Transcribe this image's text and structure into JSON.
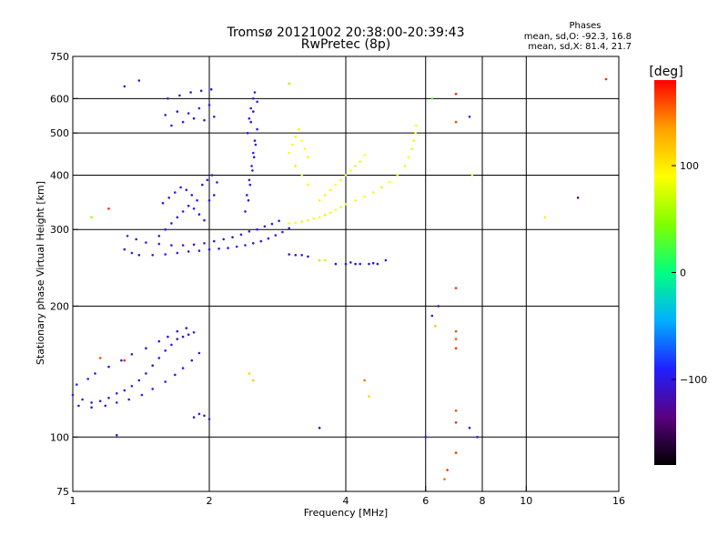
{
  "chart_data": {
    "type": "scatter",
    "title": "Tromsø 20121002 20:38:00-20:39:43",
    "subtitle": "RwPretec (8p)",
    "xlabel": "Frequency [MHz]",
    "ylabel": "Stationary phase Virtual Height [km]",
    "x_scale": "log",
    "y_scale": "log",
    "xlim": [
      1,
      16
    ],
    "ylim": [
      75,
      750
    ],
    "x_ticks": [
      1,
      2,
      4,
      6,
      8,
      10,
      16
    ],
    "x_tick_labels": [
      "1",
      "2",
      "4",
      "6",
      "8",
      "10",
      "16"
    ],
    "y_ticks": [
      75,
      100,
      200,
      300,
      400,
      500,
      600,
      750
    ],
    "y_tick_labels": [
      "75",
      "100",
      "200",
      "300",
      "400",
      "500",
      "600",
      "750"
    ],
    "x_grid": [
      2,
      4,
      6,
      8,
      10
    ],
    "y_grid": [
      100,
      200,
      300,
      400,
      500,
      600
    ],
    "grid": true,
    "colorbar": {
      "label": "[deg]",
      "range": [
        -180,
        180
      ],
      "ticks": [
        100,
        0,
        -100
      ],
      "tick_labels": [
        "100",
        "0",
        "−100"
      ],
      "colors": [
        "#000000",
        "#5a0080",
        "#2020ff",
        "#00b0ff",
        "#00ff80",
        "#80ff00",
        "#ffff00",
        "#ffa000",
        "#ff0000"
      ]
    },
    "stats": {
      "heading": "Phases",
      "line1": "mean, sd,O: -92.3, 16.8",
      "line2": "mean, sd,X: 81.4, 21.7"
    },
    "series": [
      {
        "x": [
          1.0,
          1.05,
          1.1,
          1.15,
          1.2,
          1.25,
          1.3,
          1.35,
          1.4,
          1.45,
          1.5,
          1.55,
          1.6,
          1.65,
          1.7,
          1.75,
          1.8,
          1.85,
          1.02,
          1.08,
          1.12,
          1.2,
          1.28,
          1.35,
          1.45,
          1.55,
          1.62,
          1.7,
          1.78,
          1.03,
          1.1,
          1.18,
          1.25,
          1.33,
          1.42,
          1.5,
          1.6,
          1.68,
          1.75,
          1.83,
          1.9
        ],
        "y": [
          125,
          122,
          120,
          121,
          123,
          126,
          128,
          131,
          135,
          140,
          146,
          152,
          158,
          163,
          168,
          170,
          172,
          174,
          132,
          136,
          140,
          145,
          150,
          155,
          160,
          166,
          170,
          175,
          178,
          118,
          117,
          118,
          120,
          122,
          125,
          129,
          134,
          139,
          144,
          150,
          156
        ],
        "phase": [
          -100,
          -95,
          -105,
          -90,
          -110,
          -100,
          -95,
          -85,
          -100,
          -105,
          -110,
          -95,
          -100,
          -90,
          -105,
          -110,
          -100,
          -95,
          -85,
          -90,
          -100,
          -105,
          -95,
          -100,
          -110,
          -90,
          -100,
          -95,
          -105,
          -110,
          -100,
          -95,
          -90,
          -105,
          -100,
          -95,
          -110,
          -100,
          -90,
          -95,
          -105
        ]
      },
      {
        "x": [
          1.3,
          1.35,
          1.4,
          1.5,
          1.6,
          1.7,
          1.8,
          1.9,
          2.0,
          2.1,
          2.2,
          2.3,
          2.4,
          2.5,
          2.6,
          2.7,
          2.8,
          2.9,
          3.0,
          1.32,
          1.38,
          1.45,
          1.55,
          1.65,
          1.75,
          1.85,
          1.95,
          2.05,
          2.15,
          2.25,
          2.35,
          2.45,
          2.55,
          2.65,
          2.75,
          2.85
        ],
        "y": [
          270,
          265,
          262,
          262,
          263,
          265,
          267,
          268,
          270,
          271,
          272,
          274,
          276,
          279,
          282,
          286,
          291,
          296,
          302,
          290,
          285,
          280,
          278,
          276,
          276,
          277,
          279,
          282,
          285,
          288,
          292,
          297,
          300,
          305,
          309,
          314
        ],
        "phase": [
          -95,
          -100,
          -105,
          -95,
          -90,
          -100,
          -110,
          -95,
          -100,
          -105,
          -90,
          -100,
          -95,
          -110,
          -100,
          -95,
          -105,
          -90,
          -100,
          -85,
          -95,
          -100,
          -105,
          -95,
          -100,
          -110,
          -90,
          -100,
          -95,
          -105,
          -100,
          -95,
          -90,
          -100,
          -105,
          -95
        ]
      },
      {
        "x": [
          1.55,
          1.6,
          1.65,
          1.7,
          1.75,
          1.8,
          1.85,
          1.9,
          1.95,
          2.0,
          2.05,
          1.58,
          1.63,
          1.68,
          1.73,
          1.78,
          1.83,
          1.88,
          1.93,
          1.98,
          2.03,
          2.08,
          1.6,
          1.7,
          1.8,
          1.9,
          2.0,
          1.62,
          1.72,
          1.82,
          1.92,
          2.02,
          1.65,
          1.75,
          1.85,
          1.95,
          2.05
        ],
        "y": [
          290,
          300,
          310,
          320,
          330,
          340,
          335,
          325,
          315,
          350,
          360,
          345,
          355,
          365,
          375,
          370,
          360,
          350,
          380,
          390,
          400,
          385,
          550,
          560,
          555,
          570,
          580,
          600,
          610,
          620,
          625,
          630,
          520,
          530,
          540,
          535,
          545
        ],
        "phase": [
          -100,
          -95,
          -105,
          -110,
          -90,
          -100,
          -95,
          -105,
          -100,
          -95,
          -110,
          -90,
          -100,
          -105,
          -95,
          -100,
          -110,
          -90,
          -100,
          -95,
          -105,
          -100,
          -95,
          -110,
          -100,
          -90,
          -105,
          -100,
          -95,
          -100,
          -110,
          -90,
          -100,
          -95,
          -105,
          -100,
          -95
        ]
      },
      {
        "x": [
          2.4,
          2.42,
          2.45,
          2.48,
          2.5,
          2.52,
          2.55,
          2.45,
          2.47,
          2.5,
          2.52,
          2.44,
          2.46,
          2.49,
          2.51,
          2.53,
          2.43,
          2.47,
          2.5,
          2.55
        ],
        "y": [
          330,
          360,
          390,
          420,
          450,
          480,
          510,
          540,
          570,
          600,
          620,
          350,
          380,
          410,
          440,
          470,
          500,
          530,
          560,
          590
        ],
        "phase": [
          -100,
          -95,
          -105,
          -100,
          -90,
          -110,
          -100,
          -95,
          -105,
          -100,
          -95,
          -110,
          -90,
          -100,
          -95,
          -105,
          -100,
          -95,
          -110,
          -100
        ]
      },
      {
        "x": [
          3.0,
          3.1,
          3.2,
          3.3,
          3.4,
          3.5,
          3.6,
          3.7,
          3.8,
          3.9,
          4.0,
          4.2,
          4.4,
          4.6,
          4.8,
          5.0,
          5.2,
          5.4,
          5.5,
          5.6,
          5.65,
          5.7,
          5.72
        ],
        "y": [
          310,
          311,
          313,
          315,
          318,
          320,
          324,
          328,
          333,
          338,
          343,
          350,
          357,
          365,
          375,
          386,
          400,
          420,
          440,
          460,
          480,
          500,
          520
        ],
        "phase": [
          85,
          90,
          80,
          95,
          85,
          90,
          75,
          85,
          90,
          80,
          85,
          95,
          90,
          85,
          80,
          90,
          85,
          95,
          90,
          80,
          85,
          90,
          85
        ]
      },
      {
        "x": [
          3.0,
          3.05,
          3.1,
          3.15,
          3.2,
          3.25,
          3.3,
          3.1,
          3.2,
          3.3,
          3.5,
          3.6,
          3.7,
          3.8,
          3.9,
          4.0,
          4.1,
          4.2,
          4.3,
          4.4
        ],
        "y": [
          450,
          470,
          490,
          510,
          480,
          460,
          440,
          420,
          400,
          380,
          350,
          360,
          370,
          380,
          390,
          400,
          410,
          420,
          430,
          445
        ],
        "phase": [
          90,
          85,
          95,
          80,
          90,
          85,
          95,
          100,
          85,
          90,
          95,
          80,
          85,
          90,
          95,
          85,
          90,
          80,
          85,
          90
        ]
      },
      {
        "x": [
          3.0,
          3.1,
          3.2,
          3.3,
          3.5,
          3.6,
          3.8,
          4.0,
          4.1,
          4.2,
          4.3,
          4.5,
          4.6,
          4.7,
          4.9
        ],
        "y": [
          263,
          262,
          262,
          260,
          255,
          255,
          250,
          250,
          252,
          250,
          250,
          250,
          251,
          250,
          255
        ],
        "phase": [
          -120,
          -115,
          -100,
          -110,
          60,
          70,
          -115,
          -105,
          -110,
          -120,
          -95,
          -100,
          -110,
          -115,
          -105
        ]
      },
      {
        "x": [
          1.4,
          1.3,
          1.1,
          1.2,
          3.0,
          6.2,
          7.0,
          7.0,
          7.0,
          7.0,
          7.0,
          7.0,
          7.0,
          7.0,
          7.0,
          6.7,
          6.6,
          6.4,
          6.2,
          6.0,
          6.3,
          7.5,
          7.6,
          13.0,
          11.0,
          15.0,
          2.45,
          2.5,
          3.5,
          4.4,
          4.5,
          1.3,
          1.15,
          1.25,
          2.0,
          1.95,
          1.85,
          1.9,
          7.5,
          7.8
        ],
        "y": [
          660,
          640,
          320,
          335,
          650,
          600,
          615,
          530,
          220,
          175,
          168,
          160,
          115,
          108,
          92,
          84,
          80,
          200,
          190,
          100,
          180,
          545,
          400,
          355,
          320,
          665,
          140,
          135,
          105,
          135,
          124,
          150,
          152,
          101,
          110,
          112,
          111,
          113,
          105,
          100
        ],
        "phase": [
          -110,
          -100,
          50,
          170,
          60,
          30,
          170,
          160,
          165,
          160,
          155,
          165,
          160,
          170,
          165,
          170,
          150,
          -120,
          -100,
          -100,
          120,
          -100,
          80,
          -140,
          100,
          170,
          110,
          120,
          -120,
          150,
          110,
          170,
          160,
          -100,
          -110,
          -105,
          -100,
          -95,
          -100,
          -110
        ]
      }
    ]
  }
}
